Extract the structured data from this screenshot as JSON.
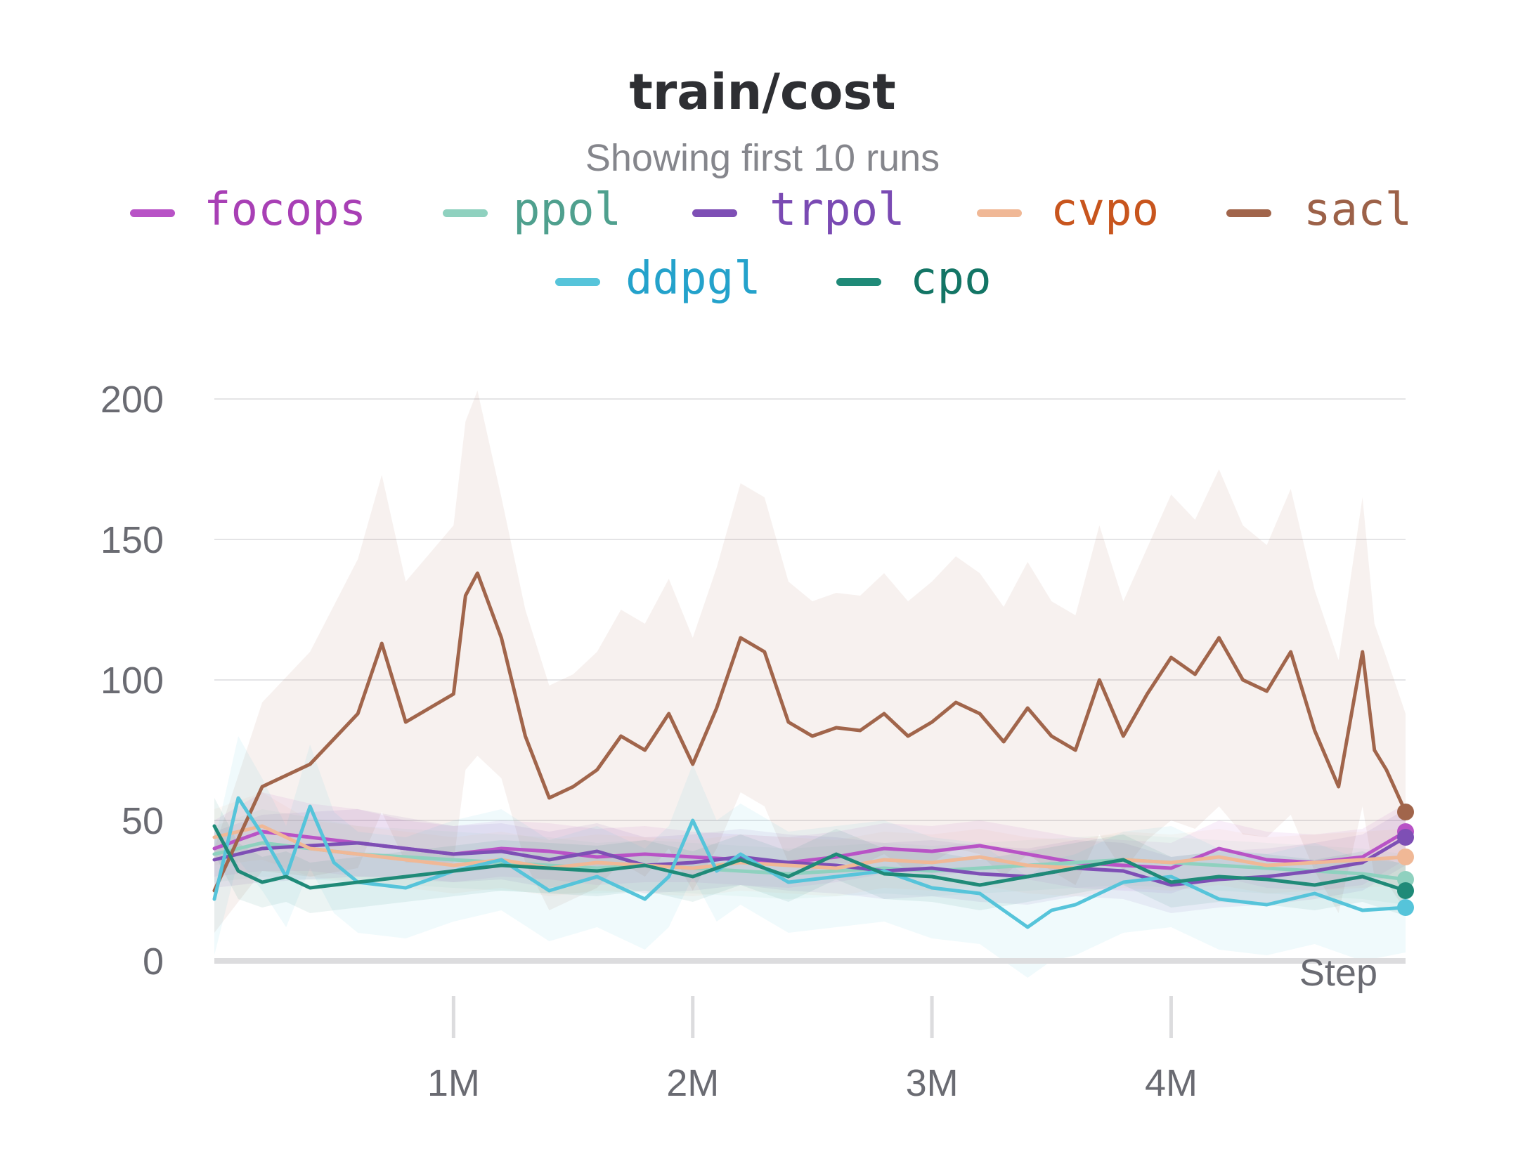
{
  "chart_data": {
    "type": "line",
    "title": "train/cost",
    "subtitle": "Showing first 10 runs",
    "xlabel": "Step",
    "ylabel": "",
    "xlim": [
      0,
      4980000
    ],
    "ylim": [
      0,
      200
    ],
    "yticks": [
      0,
      50,
      100,
      150,
      200
    ],
    "ytick_labels": [
      "0",
      "50",
      "100",
      "150",
      "200"
    ],
    "xticks": [
      1000000,
      2000000,
      3000000,
      4000000
    ],
    "xtick_labels": [
      "1M",
      "2M",
      "3M",
      "4M"
    ],
    "grid": true,
    "legend_position": "top",
    "series": [
      {
        "name": "focops",
        "color": "#b853c6",
        "text_color": "#a83fb5",
        "x": [
          0,
          200000,
          400000,
          600000,
          800000,
          1000000,
          1200000,
          1400000,
          1600000,
          1800000,
          2000000,
          2200000,
          2400000,
          2600000,
          2800000,
          3000000,
          3200000,
          3400000,
          3600000,
          3800000,
          4000000,
          4200000,
          4400000,
          4600000,
          4800000,
          4980000
        ],
        "y": [
          40,
          46,
          44,
          42,
          40,
          38,
          40,
          39,
          37,
          38,
          37,
          36,
          35,
          37,
          40,
          39,
          41,
          38,
          35,
          34,
          33,
          40,
          36,
          35,
          37,
          46
        ],
        "band": [
          10,
          14,
          12,
          12,
          10,
          10,
          10,
          10,
          10,
          10,
          9,
          9,
          9,
          9,
          9,
          9,
          9,
          9,
          9,
          9,
          9,
          10,
          10,
          10,
          10,
          10
        ]
      },
      {
        "name": "ppol",
        "color": "#8fd1bf",
        "text_color": "#4fa08e",
        "x": [
          0,
          200000,
          400000,
          600000,
          800000,
          1000000,
          1200000,
          1400000,
          1600000,
          1800000,
          2000000,
          2200000,
          2400000,
          2600000,
          2800000,
          3000000,
          3200000,
          3400000,
          3600000,
          3800000,
          4000000,
          4200000,
          4400000,
          4600000,
          4800000,
          4980000
        ],
        "y": [
          38,
          42,
          40,
          38,
          37,
          36,
          35,
          34,
          33,
          34,
          33,
          32,
          31,
          32,
          33,
          32,
          33,
          34,
          35,
          36,
          35,
          34,
          33,
          32,
          31,
          29
        ],
        "band": [
          10,
          12,
          11,
          10,
          10,
          10,
          10,
          10,
          9,
          9,
          9,
          9,
          9,
          9,
          9,
          9,
          9,
          9,
          9,
          9,
          9,
          9,
          9,
          9,
          9,
          9
        ]
      },
      {
        "name": "trpol",
        "color": "#7e4fb5",
        "text_color": "#7a4ab3",
        "x": [
          0,
          200000,
          400000,
          600000,
          800000,
          1000000,
          1200000,
          1400000,
          1600000,
          1800000,
          2000000,
          2200000,
          2400000,
          2600000,
          2800000,
          3000000,
          3200000,
          3400000,
          3600000,
          3800000,
          4000000,
          4200000,
          4400000,
          4600000,
          4800000,
          4980000
        ],
        "y": [
          36,
          40,
          41,
          42,
          40,
          38,
          39,
          36,
          39,
          34,
          35,
          37,
          35,
          34,
          32,
          33,
          31,
          30,
          33,
          32,
          27,
          29,
          30,
          32,
          35,
          44
        ],
        "band": [
          10,
          12,
          12,
          12,
          11,
          10,
          10,
          10,
          10,
          10,
          10,
          10,
          10,
          10,
          10,
          10,
          10,
          10,
          10,
          10,
          10,
          10,
          10,
          10,
          10,
          10
        ]
      },
      {
        "name": "cvpo",
        "color": "#f0b896",
        "text_color": "#c8551d",
        "x": [
          0,
          200000,
          400000,
          600000,
          800000,
          1000000,
          1200000,
          1400000,
          1600000,
          1800000,
          2000000,
          2200000,
          2400000,
          2600000,
          2800000,
          3000000,
          3200000,
          3400000,
          3600000,
          3800000,
          4000000,
          4200000,
          4400000,
          4600000,
          4800000,
          4980000
        ],
        "y": [
          44,
          48,
          40,
          38,
          36,
          34,
          36,
          33,
          35,
          34,
          33,
          35,
          34,
          33,
          36,
          35,
          37,
          34,
          33,
          36,
          35,
          37,
          34,
          35,
          36,
          37
        ],
        "band": [
          10,
          12,
          10,
          10,
          10,
          10,
          10,
          10,
          10,
          10,
          10,
          10,
          10,
          10,
          10,
          10,
          10,
          10,
          10,
          10,
          10,
          10,
          10,
          10,
          10,
          10
        ]
      },
      {
        "name": "sacl",
        "color": "#a1654b",
        "text_color": "#9c6148",
        "x": [
          0,
          200000,
          400000,
          600000,
          700000,
          800000,
          900000,
          1000000,
          1050000,
          1100000,
          1200000,
          1300000,
          1400000,
          1500000,
          1600000,
          1700000,
          1800000,
          1900000,
          2000000,
          2100000,
          2200000,
          2300000,
          2400000,
          2500000,
          2600000,
          2700000,
          2800000,
          2900000,
          3000000,
          3100000,
          3200000,
          3300000,
          3400000,
          3500000,
          3600000,
          3700000,
          3800000,
          3900000,
          4000000,
          4100000,
          4200000,
          4300000,
          4400000,
          4500000,
          4600000,
          4700000,
          4800000,
          4850000,
          4900000,
          4980000
        ],
        "y": [
          25,
          62,
          70,
          88,
          113,
          85,
          90,
          95,
          130,
          138,
          115,
          80,
          58,
          62,
          68,
          80,
          75,
          88,
          70,
          90,
          115,
          110,
          85,
          80,
          83,
          82,
          88,
          80,
          85,
          92,
          88,
          78,
          90,
          80,
          75,
          100,
          80,
          95,
          108,
          102,
          115,
          100,
          96,
          110,
          82,
          62,
          110,
          75,
          68,
          53
        ],
        "band": [
          15,
          30,
          40,
          55,
          60,
          50,
          55,
          60,
          62,
          65,
          50,
          45,
          40,
          40,
          42,
          45,
          45,
          48,
          45,
          50,
          55,
          55,
          50,
          48,
          48,
          48,
          50,
          48,
          50,
          52,
          50,
          48,
          52,
          48,
          48,
          55,
          48,
          52,
          58,
          55,
          60,
          55,
          52,
          58,
          50,
          45,
          55,
          45,
          40,
          35
        ]
      },
      {
        "name": "ddpgl",
        "color": "#56c4da",
        "text_color": "#24a2cb",
        "x": [
          0,
          100000,
          200000,
          300000,
          400000,
          500000,
          600000,
          800000,
          1000000,
          1200000,
          1400000,
          1600000,
          1800000,
          1900000,
          2000000,
          2100000,
          2200000,
          2400000,
          2600000,
          2800000,
          3000000,
          3200000,
          3400000,
          3500000,
          3600000,
          3800000,
          4000000,
          4200000,
          4400000,
          4600000,
          4800000,
          4980000
        ],
        "y": [
          22,
          58,
          45,
          30,
          55,
          35,
          28,
          26,
          32,
          36,
          25,
          30,
          22,
          30,
          50,
          32,
          38,
          28,
          30,
          32,
          26,
          24,
          12,
          18,
          20,
          28,
          30,
          22,
          20,
          24,
          18,
          19
        ],
        "band": [
          20,
          22,
          20,
          18,
          22,
          18,
          18,
          18,
          18,
          18,
          18,
          18,
          18,
          18,
          20,
          18,
          18,
          18,
          18,
          18,
          18,
          18,
          18,
          18,
          18,
          18,
          18,
          18,
          18,
          18,
          18,
          16
        ]
      },
      {
        "name": "cpo",
        "color": "#1f8a78",
        "text_color": "#137565",
        "x": [
          0,
          100000,
          200000,
          300000,
          400000,
          600000,
          800000,
          1000000,
          1200000,
          1400000,
          1600000,
          1800000,
          2000000,
          2200000,
          2400000,
          2600000,
          2800000,
          3000000,
          3200000,
          3400000,
          3600000,
          3800000,
          4000000,
          4200000,
          4400000,
          4600000,
          4800000,
          4980000
        ],
        "y": [
          48,
          32,
          28,
          30,
          26,
          28,
          30,
          32,
          34,
          33,
          32,
          34,
          30,
          36,
          30,
          38,
          31,
          30,
          27,
          30,
          33,
          36,
          28,
          30,
          29,
          27,
          30,
          25
        ],
        "band": [
          10,
          10,
          9,
          9,
          9,
          9,
          9,
          9,
          9,
          9,
          9,
          9,
          9,
          9,
          9,
          9,
          9,
          9,
          9,
          9,
          9,
          9,
          9,
          9,
          9,
          9,
          9,
          9
        ]
      }
    ]
  }
}
